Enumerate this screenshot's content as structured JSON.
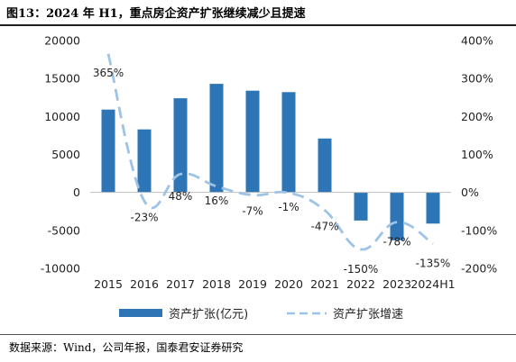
{
  "title": "图13：2024 年 H1，重点房企资产扩张继续减少且提速",
  "source": "数据来源：Wind，公司年报，国泰君安证券研究",
  "colors": {
    "bar": "#2e75b6",
    "line": "#9dc3e6",
    "axis": "#bfbfbf"
  },
  "chart_data": {
    "type": "bar",
    "categories": [
      "2015",
      "2016",
      "2017",
      "2018",
      "2019",
      "2020",
      "2021",
      "2022",
      "2023",
      "2024H1"
    ],
    "series": [
      {
        "name": "资产扩张(亿元)",
        "type": "bar",
        "axis": "left",
        "values": [
          10900,
          8300,
          12400,
          14300,
          13400,
          13200,
          7100,
          -3700,
          -6300,
          -4100
        ]
      },
      {
        "name": "资产扩张增速",
        "type": "line",
        "style": "dashed",
        "axis": "right",
        "values": [
          365,
          -23,
          48,
          16,
          -7,
          -1,
          -47,
          -150,
          -78,
          -135
        ],
        "labels": [
          "365%",
          "-23%",
          "48%",
          "16%",
          "-7%",
          "-1%",
          "-47%",
          "-150%",
          "-78%",
          "-135%"
        ]
      }
    ],
    "y_left": {
      "min": -10000,
      "max": 20000,
      "ticks": [
        "20000",
        "15000",
        "10000",
        "5000",
        "0",
        "-5000",
        "-10000"
      ]
    },
    "y_right": {
      "min": -200,
      "max": 400,
      "ticks": [
        "400%",
        "300%",
        "200%",
        "100%",
        "0%",
        "-100%",
        "-200%"
      ]
    },
    "grid": false,
    "legend_position": "bottom"
  }
}
